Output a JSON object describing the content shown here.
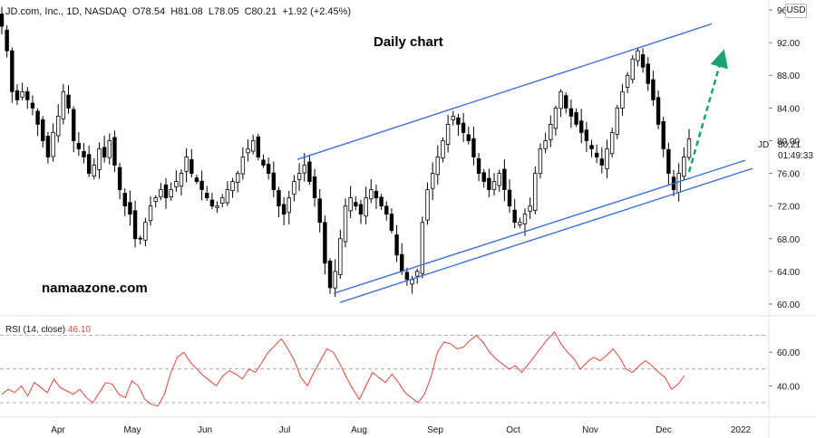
{
  "header": {
    "symbol_line": "JD.com, Inc., 1D, NASDAQ",
    "open": "O78.54",
    "high": "H81.08",
    "low": "L78.05",
    "close": "C80.21",
    "change": "+1.92 (+2.45%)",
    "currency": "USD"
  },
  "chart_title": "Daily chart",
  "watermark": "namaazone.com",
  "price_marker": {
    "symbol": "JD",
    "last_price": "80.21",
    "countdown": "01:49:33"
  },
  "chart_data": [
    {
      "type": "candlestick",
      "title": "Daily chart",
      "x_tick_labels": [
        "Apr",
        "May",
        "Jun",
        "Jul",
        "Aug",
        "Sep",
        "Oct",
        "Nov",
        "Dec",
        "2022"
      ],
      "y_tick_labels": [
        "60.00",
        "64.00",
        "68.00",
        "72.00",
        "76.00",
        "80.00",
        "84.00",
        "88.00",
        "92.00",
        "96.00"
      ],
      "ylim": [
        59,
        97
      ],
      "grid": false,
      "closes_approx": [
        94,
        91,
        86,
        85,
        86,
        85,
        84,
        82,
        80,
        78,
        81,
        83,
        86,
        84,
        80,
        79,
        78,
        76,
        77,
        79,
        78,
        80,
        77,
        74,
        72,
        71,
        68,
        68,
        70,
        72,
        73,
        74,
        73,
        74,
        75,
        76,
        78,
        76,
        75,
        74,
        73,
        72,
        72,
        73,
        74,
        75,
        76,
        78,
        79,
        80,
        78,
        77,
        76,
        74,
        72,
        71,
        73,
        75,
        76,
        77,
        75,
        73,
        70,
        65,
        62,
        64,
        68,
        72,
        73,
        72,
        71,
        73,
        74,
        73,
        72,
        71,
        69,
        66,
        64,
        63,
        63,
        64,
        70,
        74,
        76,
        78,
        80,
        82,
        83,
        82,
        81,
        80,
        78,
        76,
        75,
        74,
        75,
        76,
        74,
        72,
        70,
        70,
        71,
        72,
        76,
        79,
        80,
        82,
        84,
        86,
        84,
        83,
        82,
        81,
        80,
        79,
        78,
        77,
        79,
        81,
        84,
        86,
        88,
        90,
        91,
        89,
        87,
        85,
        82,
        79,
        76,
        74,
        76,
        78,
        80.21
      ],
      "channel_lines": [
        {
          "from": {
            "x": "Jul",
            "y": 77.7
          },
          "to": {
            "x": "Dec",
            "y": 94.3
          }
        },
        {
          "from": {
            "x": "Jul",
            "y": 61.3
          },
          "to": {
            "x": "Dec",
            "y": 77.6
          }
        },
        {
          "from": {
            "x": "Jul",
            "y": 60.2
          },
          "to": {
            "x": "Dec",
            "y": 76.6
          }
        }
      ],
      "projection_arrow": {
        "direction": "up",
        "color": "#1aa37a"
      },
      "colors": {
        "candle": "#000000",
        "channel": "#3a6fe0"
      }
    },
    {
      "type": "line",
      "title": "RSI (14, close)",
      "last_value": "46.10",
      "y_tick_labels": [
        "40.00",
        "60.00"
      ],
      "ylim": [
        23,
        80
      ],
      "bands": [
        70,
        50,
        30
      ],
      "values_approx": [
        35,
        38,
        36,
        40,
        34,
        42,
        39,
        36,
        44,
        39,
        37,
        35,
        38,
        33,
        30,
        36,
        42,
        41,
        35,
        33,
        43,
        40,
        32,
        29,
        28,
        35,
        48,
        57,
        60,
        54,
        50,
        46,
        43,
        40,
        46,
        49,
        47,
        44,
        50,
        48,
        54,
        60,
        64,
        68,
        62,
        55,
        45,
        40,
        48,
        55,
        62,
        60,
        53,
        45,
        38,
        32,
        40,
        48,
        45,
        42,
        47,
        42,
        36,
        33,
        30,
        35,
        45,
        60,
        66,
        65,
        62,
        63,
        67,
        70,
        66,
        60,
        56,
        53,
        50,
        52,
        48,
        53,
        58,
        63,
        68,
        72,
        65,
        60,
        56,
        50,
        54,
        57,
        55,
        58,
        62,
        57,
        50,
        48,
        52,
        55,
        52,
        48,
        45,
        38,
        41,
        46.1
      ],
      "colors": {
        "line": "#e0463c"
      }
    }
  ]
}
